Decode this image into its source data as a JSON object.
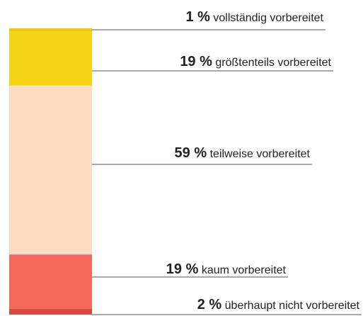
{
  "chart_data": {
    "type": "stacked_bar",
    "ylim": [
      0,
      100
    ],
    "series": [
      {
        "name": "vollständig vorbereitet",
        "color": "#f0c800",
        "values": [
          1
        ],
        "value_labels": [
          "1 %"
        ]
      },
      {
        "name": "größtenteils vorbereitet",
        "color": "#f5d415",
        "values": [
          19
        ],
        "value_labels": [
          "19 %"
        ]
      },
      {
        "name": "teilweise vorbereitet",
        "color": "#fddcc4",
        "values": [
          59
        ],
        "value_labels": [
          "59 %"
        ]
      },
      {
        "name": "kaum vorbereitet",
        "color": "#f4675a",
        "values": [
          19
        ],
        "value_labels": [
          "19 %"
        ]
      },
      {
        "name": "überhaupt nicht vorbereitet",
        "color": "#d9483b",
        "values": [
          2
        ],
        "value_labels": [
          "2 %"
        ]
      }
    ]
  }
}
